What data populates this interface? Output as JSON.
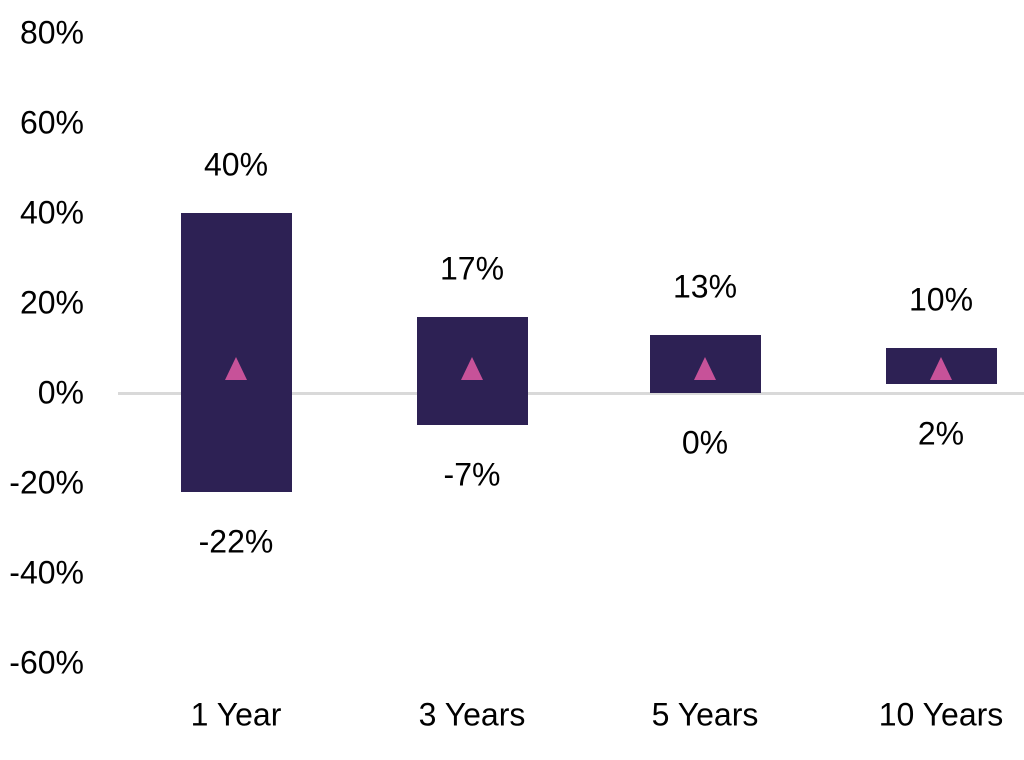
{
  "chart_data": {
    "type": "bar",
    "subtype": "floating-range-columns",
    "title": "",
    "categories": [
      "1 Year",
      "3 Years",
      "5 Years",
      "10 Years"
    ],
    "series": [
      {
        "name": "range-high",
        "values": [
          40,
          17,
          13,
          10
        ]
      },
      {
        "name": "range-low",
        "values": [
          -22,
          -7,
          0,
          2
        ]
      },
      {
        "name": "triangle-marker",
        "values": [
          5.5,
          5.5,
          5.5,
          5.5
        ]
      }
    ],
    "high_labels": [
      "40%",
      "17%",
      "13%",
      "10%"
    ],
    "low_labels": [
      "-22%",
      "-7%",
      "0%",
      "2%"
    ],
    "y_axis": {
      "min": -60,
      "max": 80,
      "tick_step": 20,
      "ticks": [
        80,
        60,
        40,
        20,
        0,
        -20,
        -40,
        -60
      ],
      "tick_labels": [
        "80%",
        "60%",
        "40%",
        "20%",
        "0%",
        "-20%",
        "-40%",
        "-60%"
      ]
    },
    "grid": false,
    "legend": false,
    "colors": {
      "bar": "#2d2154",
      "marker": "#c75299",
      "zero_line": "#d9d9d9",
      "text": "#000000"
    }
  }
}
